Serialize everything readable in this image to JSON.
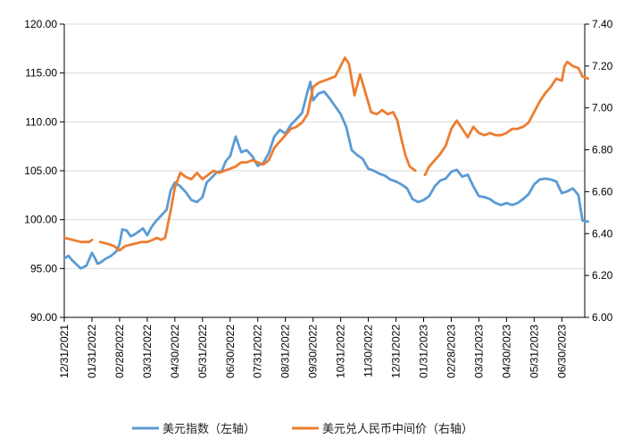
{
  "chart_data": {
    "type": "line",
    "x_ticks": [
      "12/31/2021",
      "01/31/2022",
      "02/28/2022",
      "03/31/2022",
      "04/30/2022",
      "05/31/2022",
      "06/30/2022",
      "07/31/2022",
      "08/31/2022",
      "09/30/2022",
      "10/31/2022",
      "11/30/2022",
      "12/31/2022",
      "01/31/2023",
      "02/28/2023",
      "03/31/2023",
      "04/30/2023",
      "05/31/2023",
      "06/30/2023"
    ],
    "y_left": {
      "min": 90,
      "max": 120,
      "step": 5,
      "tick_labels": [
        "90.00",
        "95.00",
        "100.00",
        "105.00",
        "110.00",
        "115.00",
        "120.00"
      ]
    },
    "y_right": {
      "min": 6.0,
      "max": 7.4,
      "step": 0.2,
      "tick_labels": [
        "6.00",
        "6.20",
        "6.40",
        "6.60",
        "6.80",
        "7.00",
        "7.20",
        "7.40"
      ]
    },
    "grid": "horizontal",
    "legend_position": "bottom",
    "series": [
      {
        "name": "美元指数（左轴）",
        "axis": "left",
        "color": "#5b9bd5",
        "points": [
          [
            0,
            96.0
          ],
          [
            0.15,
            96.3
          ],
          [
            0.3,
            95.8
          ],
          [
            0.45,
            95.4
          ],
          [
            0.6,
            95.0
          ],
          [
            0.8,
            95.3
          ],
          [
            1.0,
            96.6
          ],
          [
            1.1,
            96.1
          ],
          [
            1.2,
            95.5
          ],
          [
            1.3,
            95.6
          ],
          [
            1.5,
            96.0
          ],
          [
            1.7,
            96.3
          ],
          [
            1.9,
            96.8
          ],
          [
            2.0,
            97.5
          ],
          [
            2.1,
            99.0
          ],
          [
            2.25,
            98.9
          ],
          [
            2.4,
            98.3
          ],
          [
            2.55,
            98.5
          ],
          [
            2.7,
            98.8
          ],
          [
            2.85,
            99.1
          ],
          [
            3.0,
            98.4
          ],
          [
            3.15,
            99.2
          ],
          [
            3.3,
            99.8
          ],
          [
            3.5,
            100.4
          ],
          [
            3.7,
            101.0
          ],
          [
            3.85,
            103.0
          ],
          [
            4.0,
            103.8
          ],
          [
            4.2,
            103.4
          ],
          [
            4.4,
            102.8
          ],
          [
            4.6,
            102.0
          ],
          [
            4.8,
            101.8
          ],
          [
            5.0,
            102.3
          ],
          [
            5.15,
            103.8
          ],
          [
            5.3,
            104.2
          ],
          [
            5.5,
            104.8
          ],
          [
            5.7,
            105.0
          ],
          [
            5.85,
            106.0
          ],
          [
            6.0,
            106.5
          ],
          [
            6.2,
            108.5
          ],
          [
            6.4,
            106.9
          ],
          [
            6.6,
            107.1
          ],
          [
            6.8,
            106.5
          ],
          [
            7.0,
            105.5
          ],
          [
            7.2,
            105.8
          ],
          [
            7.4,
            106.8
          ],
          [
            7.6,
            108.5
          ],
          [
            7.8,
            109.2
          ],
          [
            8.0,
            108.8
          ],
          [
            8.2,
            109.7
          ],
          [
            8.4,
            110.3
          ],
          [
            8.6,
            110.9
          ],
          [
            8.8,
            113.1
          ],
          [
            8.9,
            114.1
          ],
          [
            9.0,
            112.2
          ],
          [
            9.2,
            112.9
          ],
          [
            9.4,
            113.1
          ],
          [
            9.6,
            112.4
          ],
          [
            9.8,
            111.6
          ],
          [
            10.0,
            110.8
          ],
          [
            10.2,
            109.5
          ],
          [
            10.4,
            107.1
          ],
          [
            10.6,
            106.6
          ],
          [
            10.8,
            106.2
          ],
          [
            11.0,
            105.2
          ],
          [
            11.2,
            105.0
          ],
          [
            11.4,
            104.7
          ],
          [
            11.6,
            104.5
          ],
          [
            11.8,
            104.1
          ],
          [
            12.0,
            103.9
          ],
          [
            12.2,
            103.6
          ],
          [
            12.4,
            103.2
          ],
          [
            12.6,
            102.1
          ],
          [
            12.8,
            101.8
          ],
          [
            13.0,
            102.0
          ],
          [
            13.2,
            102.4
          ],
          [
            13.4,
            103.4
          ],
          [
            13.6,
            104.0
          ],
          [
            13.8,
            104.2
          ],
          [
            14.0,
            104.9
          ],
          [
            14.2,
            105.1
          ],
          [
            14.4,
            104.4
          ],
          [
            14.6,
            104.6
          ],
          [
            14.8,
            103.4
          ],
          [
            15.0,
            102.4
          ],
          [
            15.2,
            102.3
          ],
          [
            15.4,
            102.1
          ],
          [
            15.6,
            101.7
          ],
          [
            15.8,
            101.5
          ],
          [
            16.0,
            101.7
          ],
          [
            16.2,
            101.5
          ],
          [
            16.4,
            101.7
          ],
          [
            16.6,
            102.1
          ],
          [
            16.8,
            102.6
          ],
          [
            17.0,
            103.6
          ],
          [
            17.2,
            104.1
          ],
          [
            17.4,
            104.2
          ],
          [
            17.6,
            104.1
          ],
          [
            17.8,
            103.9
          ],
          [
            18.0,
            102.7
          ],
          [
            18.2,
            102.9
          ],
          [
            18.4,
            103.2
          ],
          [
            18.6,
            102.5
          ],
          [
            18.75,
            99.9
          ],
          [
            18.95,
            99.8
          ]
        ]
      },
      {
        "name": "美元兑人民币中间价（右轴）",
        "axis": "right",
        "color": "#ed7d31",
        "segments": [
          [
            [
              0,
              6.38
            ],
            [
              0.3,
              6.37
            ],
            [
              0.6,
              6.36
            ],
            [
              0.9,
              6.36
            ],
            [
              1.0,
              6.37
            ]
          ],
          [
            [
              1.3,
              6.36
            ],
            [
              1.6,
              6.35
            ],
            [
              1.8,
              6.34
            ],
            [
              2.0,
              6.32
            ],
            [
              2.2,
              6.34
            ],
            [
              2.5,
              6.35
            ],
            [
              2.8,
              6.36
            ],
            [
              3.0,
              6.36
            ],
            [
              3.2,
              6.37
            ],
            [
              3.35,
              6.38
            ],
            [
              3.5,
              6.37
            ],
            [
              3.65,
              6.38
            ],
            [
              3.85,
              6.51
            ],
            [
              4.0,
              6.62
            ],
            [
              4.2,
              6.69
            ],
            [
              4.4,
              6.67
            ],
            [
              4.6,
              6.66
            ],
            [
              4.8,
              6.69
            ],
            [
              5.0,
              6.66
            ],
            [
              5.2,
              6.68
            ],
            [
              5.4,
              6.7
            ],
            [
              5.6,
              6.69
            ],
            [
              5.8,
              6.7
            ],
            [
              6.0,
              6.71
            ],
            [
              6.2,
              6.72
            ],
            [
              6.4,
              6.74
            ],
            [
              6.6,
              6.74
            ],
            [
              6.8,
              6.75
            ],
            [
              7.0,
              6.74
            ],
            [
              7.2,
              6.73
            ],
            [
              7.4,
              6.75
            ],
            [
              7.6,
              6.81
            ],
            [
              7.8,
              6.84
            ],
            [
              8.0,
              6.87
            ],
            [
              8.2,
              6.9
            ],
            [
              8.4,
              6.91
            ],
            [
              8.6,
              6.93
            ],
            [
              8.8,
              6.97
            ],
            [
              9.0,
              7.1
            ],
            [
              9.2,
              7.12
            ],
            [
              9.4,
              7.13
            ],
            [
              9.6,
              7.14
            ],
            [
              9.8,
              7.15
            ],
            [
              10.0,
              7.2
            ],
            [
              10.15,
              7.24
            ],
            [
              10.3,
              7.21
            ],
            [
              10.5,
              7.06
            ],
            [
              10.7,
              7.16
            ],
            [
              10.9,
              7.07
            ],
            [
              11.1,
              6.98
            ],
            [
              11.3,
              6.97
            ],
            [
              11.5,
              6.99
            ],
            [
              11.7,
              6.97
            ],
            [
              11.9,
              6.98
            ],
            [
              12.05,
              6.94
            ],
            [
              12.2,
              6.85
            ],
            [
              12.35,
              6.77
            ],
            [
              12.5,
              6.72
            ],
            [
              12.7,
              6.7
            ]
          ],
          [
            [
              13.05,
              6.68
            ],
            [
              13.2,
              6.72
            ],
            [
              13.4,
              6.75
            ],
            [
              13.6,
              6.78
            ],
            [
              13.8,
              6.82
            ],
            [
              14.0,
              6.9
            ],
            [
              14.2,
              6.94
            ],
            [
              14.4,
              6.9
            ],
            [
              14.6,
              6.86
            ],
            [
              14.8,
              6.91
            ],
            [
              15.0,
              6.88
            ],
            [
              15.2,
              6.87
            ],
            [
              15.4,
              6.88
            ],
            [
              15.6,
              6.87
            ],
            [
              15.8,
              6.87
            ],
            [
              16.0,
              6.88
            ],
            [
              16.2,
              6.9
            ],
            [
              16.4,
              6.9
            ],
            [
              16.6,
              6.91
            ],
            [
              16.8,
              6.93
            ],
            [
              17.0,
              6.98
            ],
            [
              17.2,
              7.03
            ],
            [
              17.4,
              7.07
            ],
            [
              17.6,
              7.1
            ],
            [
              17.8,
              7.14
            ],
            [
              18.0,
              7.13
            ],
            [
              18.1,
              7.2
            ],
            [
              18.2,
              7.22
            ],
            [
              18.4,
              7.2
            ],
            [
              18.6,
              7.19
            ],
            [
              18.75,
              7.15
            ],
            [
              18.95,
              7.14
            ]
          ]
        ]
      }
    ]
  }
}
